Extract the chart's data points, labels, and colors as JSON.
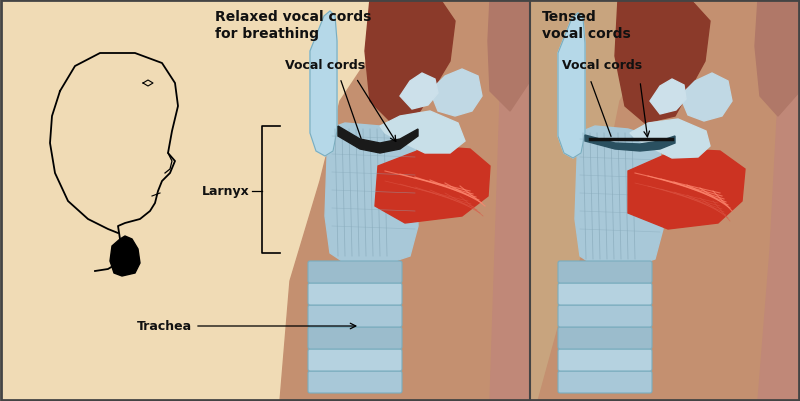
{
  "figsize": [
    8.0,
    4.02
  ],
  "dpi": 100,
  "bg_left": "#f2dfc0",
  "bg_right": "#c9a882",
  "border_color": "#444444",
  "throat_pink": "#c09080",
  "throat_dark": "#9a5040",
  "throat_cavity": "#7a3025",
  "trachea_blue": "#a0c4d4",
  "trachea_dark": "#7aadbe",
  "epi_blue": "#b0d8e8",
  "muscle_red": "#cc3322",
  "muscle_light": "#e05545",
  "cartilage_white": "#d8eaf0",
  "text_color": "#111111",
  "left_title": "Relaxed vocal cords\nfor breathing",
  "right_title": "Tensed\nvocal cords",
  "label_vocal_cords": "Vocal cords",
  "label_larnyx": "Larnyx",
  "label_trachea": "Trachea"
}
